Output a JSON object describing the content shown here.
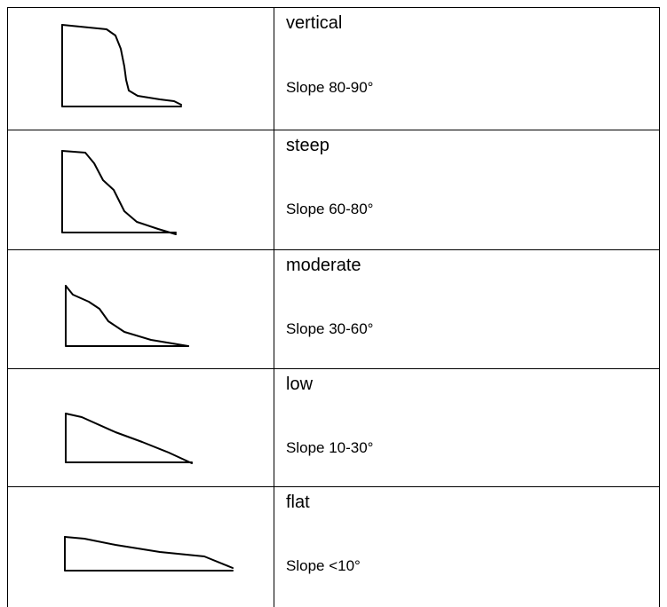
{
  "table": {
    "rows": [
      {
        "name": "vertical",
        "slope": "Slope 80-90°"
      },
      {
        "name": "steep",
        "slope": "Slope 60-80°"
      },
      {
        "name": "moderate",
        "slope": "Slope 30-60°"
      },
      {
        "name": "low",
        "slope": "Slope 10-30°"
      },
      {
        "name": "flat",
        "slope": "Slope <10°"
      }
    ]
  }
}
